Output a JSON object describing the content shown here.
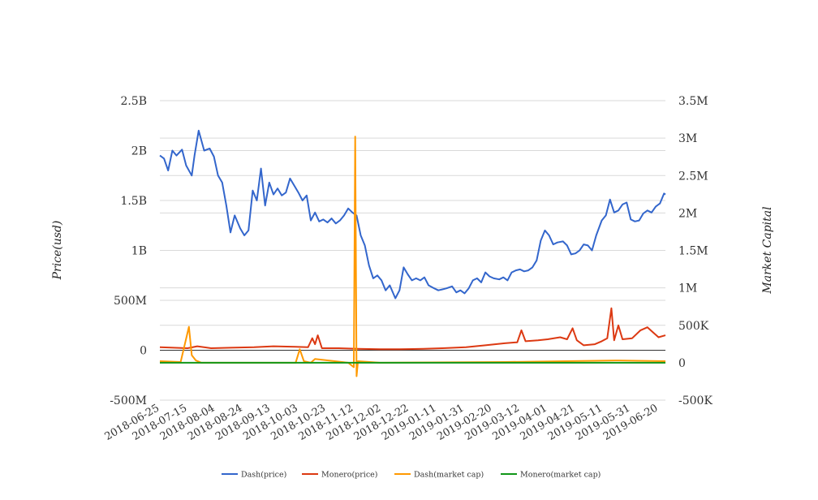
{
  "chart_data": {
    "type": "line",
    "y_left": {
      "label": "Price(usd)",
      "ylim": [
        -500000000,
        2500000000
      ],
      "ticks": [
        -500000000,
        0,
        500000000,
        1000000000,
        1500000000,
        2000000000,
        2500000000
      ],
      "tick_labels": [
        "-500M",
        "0",
        "500M",
        "1B",
        "1.5B",
        "2B",
        "2.5B"
      ]
    },
    "y_right": {
      "label": "Market Capital",
      "ylim": [
        -500000,
        3500000
      ],
      "ticks": [
        -500000,
        0,
        500000,
        1000000,
        1500000,
        2000000,
        2500000,
        3000000,
        3500000
      ],
      "tick_labels": [
        "-500K",
        "0",
        "500K",
        "1M",
        "1.5M",
        "2M",
        "2.5M",
        "3M",
        "3.5M"
      ]
    },
    "x_ticks": [
      "2018-06-25",
      "2018-07-15",
      "2018-08-04",
      "2018-08-24",
      "2018-09-13",
      "2018-10-03",
      "2018-10-23",
      "2018-11-12",
      "2018-12-02",
      "2018-12-22",
      "2019-01-11",
      "2019-01-31",
      "2019-02-20",
      "2019-03-12",
      "2019-04-01",
      "2019-04-21",
      "2019-05-11",
      "2019-05-31",
      "2019-06-20"
    ],
    "grid": true,
    "legend_position": "bottom",
    "series": [
      {
        "name": "Dash(price)",
        "color": "#3366cc",
        "axis": "left",
        "x": [
          "2018-06-25",
          "2018-06-28",
          "2018-07-01",
          "2018-07-04",
          "2018-07-07",
          "2018-07-11",
          "2018-07-14",
          "2018-07-18",
          "2018-07-20",
          "2018-07-23",
          "2018-07-27",
          "2018-07-31",
          "2018-08-03",
          "2018-08-06",
          "2018-08-09",
          "2018-08-12",
          "2018-08-15",
          "2018-08-18",
          "2018-08-22",
          "2018-08-25",
          "2018-08-28",
          "2018-08-31",
          "2018-09-03",
          "2018-09-06",
          "2018-09-09",
          "2018-09-12",
          "2018-09-15",
          "2018-09-18",
          "2018-09-21",
          "2018-09-24",
          "2018-09-27",
          "2018-09-30",
          "2018-10-03",
          "2018-10-06",
          "2018-10-09",
          "2018-10-12",
          "2018-10-15",
          "2018-10-18",
          "2018-10-21",
          "2018-10-24",
          "2018-10-27",
          "2018-10-30",
          "2018-11-02",
          "2018-11-05",
          "2018-11-08",
          "2018-11-11",
          "2018-11-14",
          "2018-11-17",
          "2018-11-20",
          "2018-11-23",
          "2018-11-26",
          "2018-11-29",
          "2018-12-02",
          "2018-12-05",
          "2018-12-08",
          "2018-12-12",
          "2018-12-15",
          "2018-12-18",
          "2018-12-21",
          "2018-12-24",
          "2018-12-27",
          "2018-12-30",
          "2019-01-02",
          "2019-01-05",
          "2019-01-09",
          "2019-01-12",
          "2019-01-15",
          "2019-01-18",
          "2019-01-22",
          "2019-01-25",
          "2019-01-28",
          "2019-01-31",
          "2019-02-03",
          "2019-02-06",
          "2019-02-09",
          "2019-02-12",
          "2019-02-15",
          "2019-02-18",
          "2019-02-21",
          "2019-02-25",
          "2019-02-28",
          "2019-03-03",
          "2019-03-06",
          "2019-03-09",
          "2019-03-12",
          "2019-03-15",
          "2019-03-18",
          "2019-03-21",
          "2019-03-24",
          "2019-03-27",
          "2019-03-30",
          "2019-04-02",
          "2019-04-05",
          "2019-04-08",
          "2019-04-12",
          "2019-04-15",
          "2019-04-18",
          "2019-04-21",
          "2019-04-24",
          "2019-04-27",
          "2019-04-30",
          "2019-05-03",
          "2019-05-06",
          "2019-05-10",
          "2019-05-13",
          "2019-05-16",
          "2019-05-19",
          "2019-05-22",
          "2019-05-25",
          "2019-05-28",
          "2019-05-31",
          "2019-06-03",
          "2019-06-06",
          "2019-06-09",
          "2019-06-12",
          "2019-06-15",
          "2019-06-18",
          "2019-06-21",
          "2019-06-24",
          "2019-06-25"
        ],
        "y": [
          1950000000,
          1920000000,
          1800000000,
          2000000000,
          1950000000,
          2010000000,
          1850000000,
          1750000000,
          1950000000,
          2200000000,
          2000000000,
          2020000000,
          1940000000,
          1750000000,
          1680000000,
          1450000000,
          1180000000,
          1350000000,
          1220000000,
          1150000000,
          1200000000,
          1600000000,
          1500000000,
          1820000000,
          1450000000,
          1680000000,
          1560000000,
          1620000000,
          1550000000,
          1580000000,
          1720000000,
          1650000000,
          1580000000,
          1500000000,
          1550000000,
          1300000000,
          1380000000,
          1290000000,
          1310000000,
          1280000000,
          1320000000,
          1270000000,
          1300000000,
          1350000000,
          1420000000,
          1380000000,
          1350000000,
          1150000000,
          1050000000,
          850000000,
          720000000,
          750000000,
          700000000,
          600000000,
          650000000,
          520000000,
          600000000,
          830000000,
          760000000,
          700000000,
          720000000,
          700000000,
          730000000,
          650000000,
          620000000,
          600000000,
          610000000,
          620000000,
          640000000,
          580000000,
          600000000,
          570000000,
          620000000,
          700000000,
          720000000,
          680000000,
          780000000,
          740000000,
          720000000,
          710000000,
          730000000,
          700000000,
          780000000,
          800000000,
          810000000,
          790000000,
          800000000,
          830000000,
          900000000,
          1100000000,
          1200000000,
          1150000000,
          1060000000,
          1080000000,
          1090000000,
          1050000000,
          960000000,
          970000000,
          1000000000,
          1060000000,
          1050000000,
          1000000000,
          1150000000,
          1300000000,
          1350000000,
          1510000000,
          1380000000,
          1400000000,
          1460000000,
          1480000000,
          1310000000,
          1290000000,
          1300000000,
          1370000000,
          1400000000,
          1380000000,
          1440000000,
          1470000000,
          1570000000,
          1560000000
        ]
      },
      {
        "name": "Monero(price)",
        "color": "#dc3912",
        "axis": "left",
        "x": [
          "2018-06-25",
          "2018-07-05",
          "2018-07-15",
          "2018-07-22",
          "2018-08-01",
          "2018-08-15",
          "2018-09-01",
          "2018-09-15",
          "2018-10-01",
          "2018-10-10",
          "2018-10-13",
          "2018-10-15",
          "2018-10-17",
          "2018-10-20",
          "2018-11-01",
          "2018-11-15",
          "2018-12-01",
          "2018-12-15",
          "2019-01-01",
          "2019-01-15",
          "2019-02-01",
          "2019-02-15",
          "2019-03-01",
          "2019-03-10",
          "2019-03-13",
          "2019-03-16",
          "2019-03-25",
          "2019-04-01",
          "2019-04-10",
          "2019-04-15",
          "2019-04-19",
          "2019-04-22",
          "2019-04-27",
          "2019-05-05",
          "2019-05-10",
          "2019-05-14",
          "2019-05-17",
          "2019-05-19",
          "2019-05-22",
          "2019-05-25",
          "2019-06-01",
          "2019-06-07",
          "2019-06-12",
          "2019-06-16",
          "2019-06-20",
          "2019-06-25"
        ],
        "y": [
          30000000,
          25000000,
          20000000,
          40000000,
          20000000,
          25000000,
          30000000,
          40000000,
          35000000,
          30000000,
          120000000,
          60000000,
          150000000,
          20000000,
          20000000,
          15000000,
          10000000,
          10000000,
          15000000,
          20000000,
          30000000,
          50000000,
          70000000,
          80000000,
          200000000,
          90000000,
          100000000,
          110000000,
          130000000,
          110000000,
          220000000,
          100000000,
          50000000,
          60000000,
          90000000,
          120000000,
          420000000,
          100000000,
          250000000,
          110000000,
          120000000,
          200000000,
          230000000,
          180000000,
          130000000,
          150000000
        ]
      },
      {
        "name": "Dash(market cap)",
        "color": "#ff9900",
        "axis": "right",
        "x": [
          "2018-06-25",
          "2018-07-10",
          "2018-07-16",
          "2018-07-18",
          "2018-07-21",
          "2018-07-25",
          "2018-08-10",
          "2018-10-01",
          "2018-10-04",
          "2018-10-07",
          "2018-10-12",
          "2018-10-15",
          "2018-11-08",
          "2018-11-12",
          "2018-11-13",
          "2018-11-14",
          "2018-11-15",
          "2018-12-01",
          "2019-03-01",
          "2019-05-20",
          "2019-06-25"
        ],
        "y": [
          20000,
          10000,
          480000,
          100000,
          30000,
          0,
          0,
          0,
          180000,
          20000,
          0,
          50000,
          0,
          -60000,
          3020000,
          -180000,
          20000,
          0,
          10000,
          30000,
          20000
        ]
      },
      {
        "name": "Monero(market cap)",
        "color": "#109618",
        "axis": "right",
        "x": [
          "2018-06-25",
          "2018-10-01",
          "2019-01-01",
          "2019-04-01",
          "2019-06-25"
        ],
        "y": [
          0,
          0,
          0,
          0,
          0
        ]
      }
    ]
  }
}
